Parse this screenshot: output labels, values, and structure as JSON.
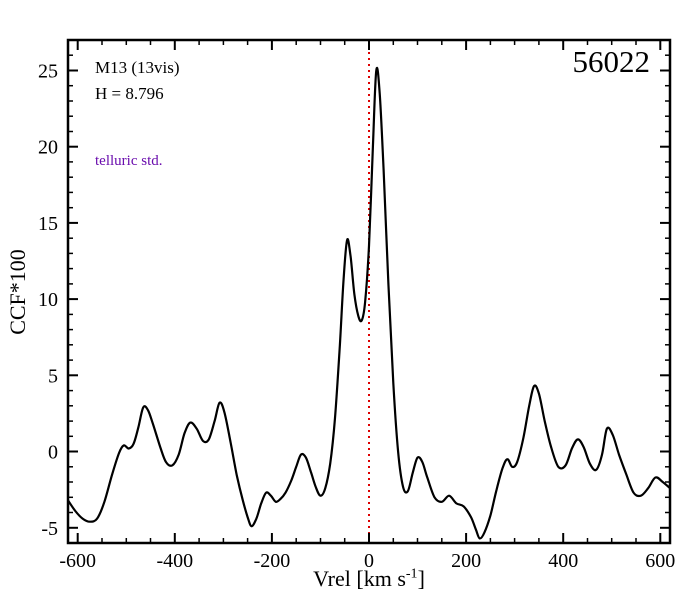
{
  "chart_data": {
    "type": "line",
    "title": "",
    "xlabel": "Vrel [km s^-1]",
    "ylabel": "CCF*100",
    "xlim": [
      -620,
      620
    ],
    "ylim": [
      -6,
      27
    ],
    "x_ticks": [
      -600,
      -400,
      -200,
      0,
      200,
      400,
      600
    ],
    "y_ticks": [
      -5,
      0,
      5,
      10,
      15,
      20,
      25
    ],
    "x_minor_step": 50,
    "y_minor_step": 1,
    "grid": false,
    "legend": "none",
    "vline": {
      "x": 0,
      "color": "#dd0000",
      "style": "dotted"
    },
    "series": [
      {
        "name": "CCF",
        "color": "#000000",
        "x": [
          -620,
          -605,
          -590,
          -575,
          -560,
          -545,
          -530,
          -515,
          -505,
          -495,
          -485,
          -475,
          -465,
          -455,
          -445,
          -430,
          -418,
          -405,
          -392,
          -380,
          -368,
          -355,
          -342,
          -330,
          -318,
          -308,
          -298,
          -285,
          -272,
          -260,
          -250,
          -242,
          -232,
          -222,
          -212,
          -202,
          -192,
          -182,
          -172,
          -160,
          -150,
          -140,
          -130,
          -120,
          -110,
          -100,
          -90,
          -80,
          -70,
          -60,
          -52,
          -45,
          -38,
          -30,
          -22,
          -15,
          -8,
          0,
          8,
          15,
          22,
          30,
          40,
          50,
          60,
          70,
          80,
          90,
          100,
          110,
          120,
          135,
          150,
          165,
          180,
          195,
          210,
          220,
          228,
          238,
          250,
          262,
          275,
          285,
          295,
          305,
          318,
          330,
          340,
          350,
          362,
          375,
          390,
          405,
          418,
          430,
          442,
          455,
          468,
          480,
          490,
          502,
          515,
          530,
          545,
          560,
          575,
          590,
          605,
          620
        ],
        "y": [
          -3.2,
          -3.9,
          -4.4,
          -4.6,
          -4.4,
          -3.3,
          -1.6,
          -0.1,
          0.4,
          0.2,
          0.5,
          1.6,
          2.9,
          2.7,
          1.8,
          0.3,
          -0.7,
          -0.9,
          -0.2,
          1.2,
          1.9,
          1.5,
          0.7,
          0.8,
          2.0,
          3.2,
          2.6,
          0.6,
          -1.6,
          -3.2,
          -4.3,
          -4.9,
          -4.4,
          -3.4,
          -2.7,
          -2.9,
          -3.3,
          -3.1,
          -2.7,
          -1.9,
          -1.0,
          -0.2,
          -0.4,
          -1.3,
          -2.3,
          -2.9,
          -2.4,
          -0.8,
          2.2,
          7.0,
          11.5,
          13.9,
          12.8,
          10.3,
          8.9,
          8.6,
          9.8,
          13.5,
          20.0,
          25.0,
          23.5,
          18.5,
          11.0,
          4.5,
          0.0,
          -2.3,
          -2.6,
          -1.4,
          -0.4,
          -0.7,
          -1.7,
          -3.0,
          -3.3,
          -2.9,
          -3.4,
          -3.6,
          -4.3,
          -5.1,
          -5.7,
          -5.3,
          -4.2,
          -2.6,
          -1.1,
          -0.5,
          -1.0,
          -0.7,
          0.9,
          3.0,
          4.3,
          3.8,
          2.0,
          0.3,
          -1.0,
          -0.9,
          0.2,
          0.8,
          0.3,
          -0.8,
          -1.2,
          -0.2,
          1.5,
          1.1,
          -0.2,
          -1.5,
          -2.7,
          -2.9,
          -2.4,
          -1.7,
          -2.0,
          -2.4
        ]
      }
    ]
  },
  "annotations": {
    "target": "M13 (13vis)",
    "h_mag": "H = 8.796",
    "telluric": "telluric std.",
    "mjd": "56022",
    "xlabel_main": "Vrel [km s",
    "xlabel_sup": "-1",
    "xlabel_close": "]"
  },
  "colors": {
    "curve": "#000000",
    "frame": "#000000",
    "vline": "#dd0000",
    "telluric_text": "#6a0dad",
    "background": "#ffffff"
  }
}
